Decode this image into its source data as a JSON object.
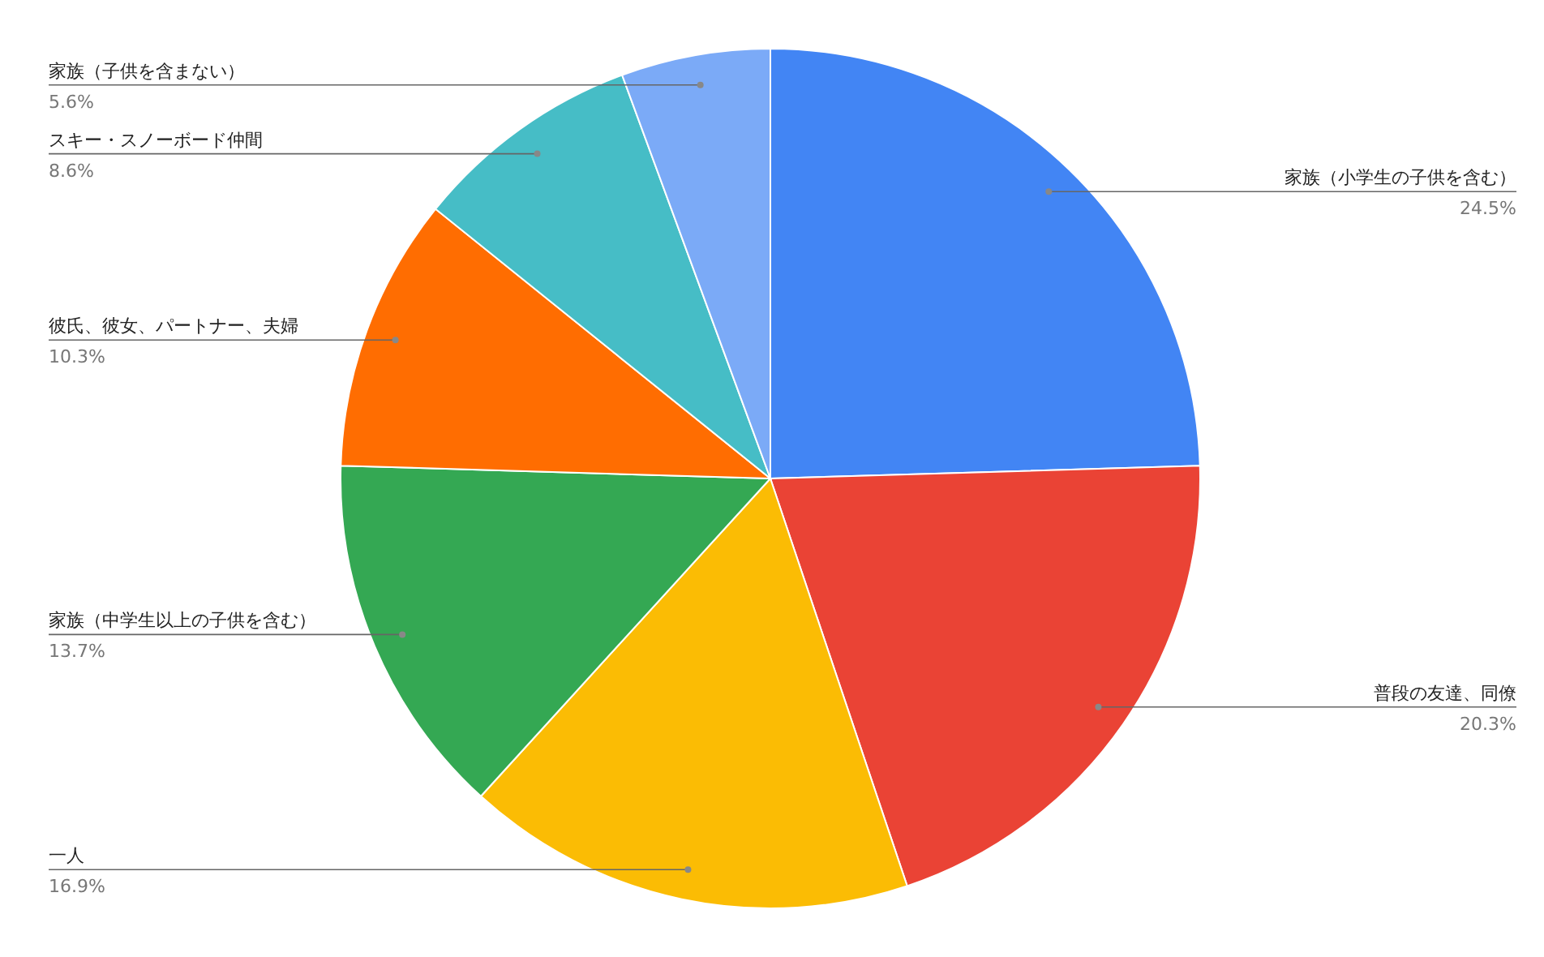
{
  "chart_data": {
    "type": "pie",
    "categories": [
      "家族（小学生の子供を含む）",
      "普段の友達、同僚",
      "一人",
      "家族（中学生以上の子供を含む）",
      "彼氏、彼女、パートナー、夫婦",
      "スキー・スノーボード仲間",
      "家族（子供を含まない）"
    ],
    "values": [
      24.5,
      20.3,
      16.9,
      13.7,
      10.3,
      8.6,
      5.6
    ],
    "value_labels": [
      "24.5%",
      "20.3%",
      "16.9%",
      "13.7%",
      "10.3%",
      "8.6%",
      "5.6%"
    ],
    "colors": [
      "#4285f4",
      "#ea4335",
      "#fbbc04",
      "#34a853",
      "#ff6d01",
      "#46bdc6",
      "#7baaf7"
    ],
    "legend": false
  }
}
